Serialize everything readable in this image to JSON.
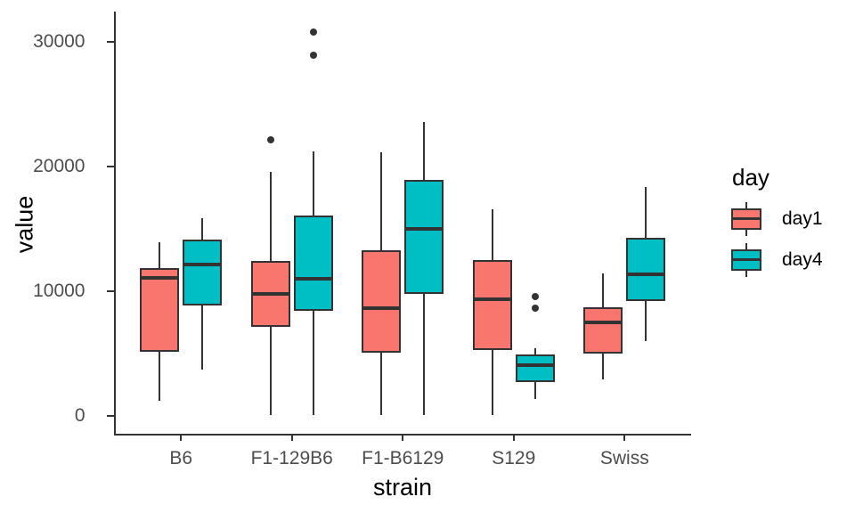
{
  "chart_data": {
    "type": "boxplot",
    "title": "",
    "xlabel": "strain",
    "ylabel": "value",
    "categories": [
      "B6",
      "F1-129B6",
      "F1-B6129",
      "S129",
      "Swiss"
    ],
    "y_axis": {
      "ticks": [
        0,
        10000,
        20000,
        30000
      ],
      "tick_labels": [
        "0",
        "10000",
        "20000",
        "30000"
      ],
      "range": [
        -1400,
        32400
      ]
    },
    "grid": "off",
    "legend": {
      "title": "day",
      "position": "right",
      "entries": [
        {
          "label": "day1",
          "color": "#F8766D"
        },
        {
          "label": "day4",
          "color": "#00BFC4"
        }
      ]
    },
    "style": {
      "box_border_color": "#333333",
      "whisker_color": "#333333",
      "axis_color": "#333333",
      "tick_text_color": "#4d4d4d",
      "title_text_color": "#000000",
      "background": "#ffffff"
    },
    "series": [
      {
        "name": "day1",
        "color": "#F8766D",
        "boxes": [
          {
            "category": "B6",
            "min": 1200,
            "q1": 5150,
            "median": 11050,
            "q3": 11850,
            "max": 13950,
            "outliers": []
          },
          {
            "category": "F1-129B6",
            "min": 100,
            "q1": 7150,
            "median": 9800,
            "q3": 12400,
            "max": 19550,
            "outliers": [
              22150
            ]
          },
          {
            "category": "F1-B6129",
            "min": 100,
            "q1": 5100,
            "median": 8650,
            "q3": 13300,
            "max": 21150,
            "outliers": []
          },
          {
            "category": "S129",
            "min": 100,
            "q1": 5300,
            "median": 9350,
            "q3": 12500,
            "max": 16550,
            "outliers": []
          },
          {
            "category": "Swiss",
            "min": 2900,
            "q1": 5000,
            "median": 7500,
            "q3": 8700,
            "max": 11400,
            "outliers": []
          }
        ]
      },
      {
        "name": "day4",
        "color": "#00BFC4",
        "boxes": [
          {
            "category": "B6",
            "min": 3700,
            "q1": 8850,
            "median": 12150,
            "q3": 14150,
            "max": 15850,
            "outliers": []
          },
          {
            "category": "F1-129B6",
            "min": 100,
            "q1": 8400,
            "median": 11000,
            "q3": 16100,
            "max": 21200,
            "outliers": [
              28950,
              30800
            ]
          },
          {
            "category": "F1-B6129",
            "min": 100,
            "q1": 9800,
            "median": 15000,
            "q3": 18950,
            "max": 23600,
            "outliers": []
          },
          {
            "category": "S129",
            "min": 1350,
            "q1": 2700,
            "median": 4050,
            "q3": 4900,
            "max": 5400,
            "outliers": [
              8650,
              9550
            ]
          },
          {
            "category": "Swiss",
            "min": 6000,
            "q1": 9200,
            "median": 11350,
            "q3": 14300,
            "max": 18350,
            "outliers": []
          }
        ]
      }
    ]
  }
}
